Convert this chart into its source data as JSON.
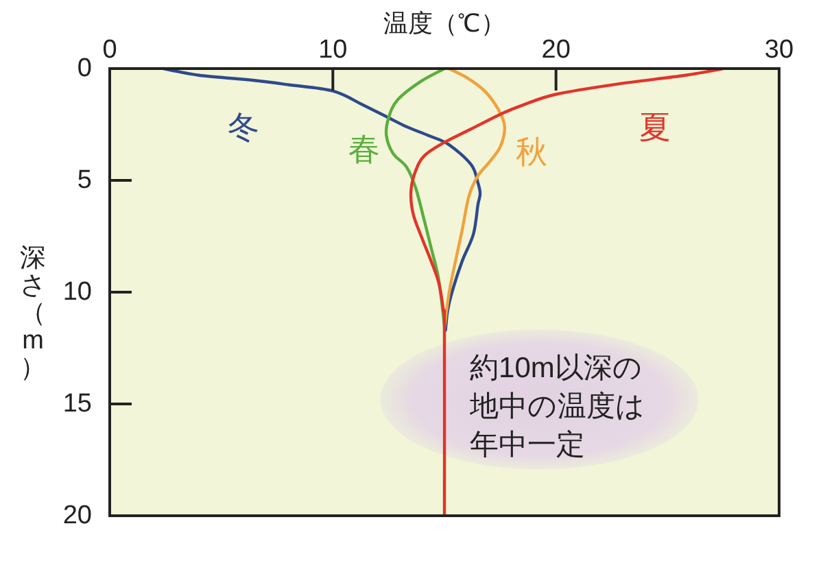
{
  "chart_data": {
    "type": "line",
    "xlabel": "温度（℃）",
    "ylabel": "深さ（m）",
    "xlim": [
      0,
      30
    ],
    "xticks": [
      0,
      10,
      20,
      30
    ],
    "ylim": [
      20,
      0
    ],
    "yticks": [
      0,
      5,
      10,
      15,
      20
    ],
    "annotations": [
      "約10m以深の地中の温度は年中一定"
    ],
    "series": [
      {
        "name": "冬",
        "color": "#2e4a8c",
        "x": [
          2.4,
          4.0,
          6.2,
          8.0,
          10.0,
          11.3,
          12.5,
          13.3,
          14.3,
          15.2,
          16.2,
          16.5,
          16.6,
          16.5,
          16.3,
          15.8,
          15.4,
          15.15,
          15.05
        ],
        "values": [
          0,
          0.3,
          0.5,
          0.72,
          1.0,
          1.6,
          2.2,
          2.6,
          3.0,
          3.4,
          4.3,
          5.1,
          5.6,
          6.1,
          7.4,
          8.6,
          9.8,
          10.8,
          11.7
        ]
      },
      {
        "name": "春",
        "color": "#5aae3e",
        "x": [
          15.0,
          13.9,
          12.9,
          12.5,
          12.4,
          12.7,
          13.3,
          13.7,
          14.1,
          14.4,
          14.7,
          14.85,
          15.0
        ],
        "values": [
          0,
          0.6,
          1.4,
          2.2,
          3.0,
          3.8,
          4.4,
          5.3,
          6.8,
          8.0,
          9.2,
          10.2,
          11.5
        ]
      },
      {
        "name": "秋",
        "color": "#f0a23c",
        "x": [
          15.2,
          16.0,
          16.8,
          17.4,
          17.7,
          17.5,
          17.0,
          16.5,
          16.1,
          15.8,
          15.5,
          15.25,
          15.1,
          15.0
        ],
        "values": [
          0,
          0.4,
          1.0,
          1.8,
          2.6,
          3.5,
          4.2,
          4.8,
          5.7,
          7.2,
          8.6,
          9.8,
          10.8,
          11.6
        ]
      },
      {
        "name": "夏",
        "color": "#e2342a",
        "x": [
          27.5,
          25.8,
          22.7,
          20.0,
          18.6,
          17.6,
          16.2,
          15.0,
          14.1,
          13.7,
          13.5,
          13.6,
          14.0,
          14.4,
          14.75,
          14.95,
          15.0,
          15.0
        ],
        "values": [
          0,
          0.3,
          0.7,
          1.15,
          1.6,
          2.0,
          2.7,
          3.3,
          3.9,
          4.6,
          5.5,
          6.5,
          7.6,
          8.6,
          9.6,
          10.8,
          11.7,
          20
        ]
      }
    ]
  }
}
